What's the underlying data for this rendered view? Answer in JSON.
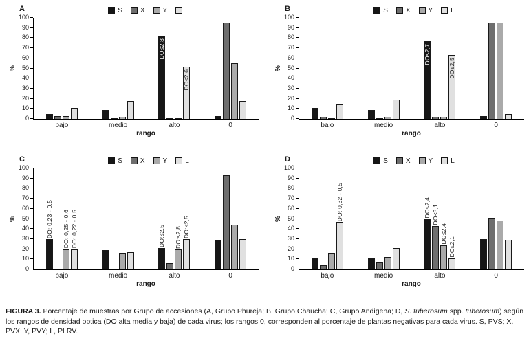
{
  "figure": {
    "caption": {
      "segments": [
        {
          "text": "FIGURA 3.",
          "bold": true
        },
        {
          "text": " Porcentaje de muestras por Grupo de accesiones (A, Grupo Phureja; B, Grupo Chaucha; C, Grupo Andigena; D, "
        },
        {
          "text": "S. tuberosum",
          "italic": true
        },
        {
          "text": " spp. "
        },
        {
          "text": "tuberosum",
          "italic": true
        },
        {
          "text": ") según los rangos de densidad optica (DO alta media y baja) de cada virus; los rangos 0, corresponden al porcentaje de plantas negativas para cada virus. S, PVS; X, PVX; Y, PVY; L, PLRV."
        }
      ]
    },
    "series_colors": {
      "S": "#161616",
      "X": "#6e6e6e",
      "Y": "#aaaaaa",
      "L": "#e0e0e0"
    }
  },
  "chart_data": [
    {
      "panel": "A",
      "type": "bar",
      "accession_group": "Grupo Phureja",
      "categories": [
        "bajo",
        "medio",
        "alto",
        "0"
      ],
      "xlabel": "rango",
      "ylabel": "%",
      "ylim": [
        0,
        100
      ],
      "yticks": [
        0,
        10,
        20,
        30,
        40,
        50,
        60,
        70,
        80,
        90,
        100
      ],
      "legend_position": "top",
      "series": [
        {
          "name": "S",
          "color": "#161616",
          "values": [
            5,
            9,
            82,
            3
          ]
        },
        {
          "name": "X",
          "color": "#6e6e6e",
          "values": [
            3,
            1,
            1,
            95
          ]
        },
        {
          "name": "Y",
          "color": "#aaaaaa",
          "values": [
            3,
            2,
            1,
            55
          ]
        },
        {
          "name": "L",
          "color": "#e0e0e0",
          "values": [
            11,
            18,
            52,
            18
          ]
        }
      ],
      "annotations": [
        {
          "series": "S",
          "category": "alto",
          "text": "DO≤2,8",
          "placement": "inside",
          "color": "#ffffff"
        },
        {
          "series": "L",
          "category": "alto",
          "text": "DO≤2,6",
          "placement": "inside",
          "color": "#1a1a1a"
        }
      ]
    },
    {
      "panel": "B",
      "type": "bar",
      "accession_group": "Grupo Chaucha",
      "categories": [
        "bajo",
        "medio",
        "alto",
        "0"
      ],
      "xlabel": "rango",
      "ylabel": "%",
      "ylim": [
        0,
        100
      ],
      "yticks": [
        0,
        10,
        20,
        30,
        40,
        50,
        60,
        70,
        80,
        90,
        100
      ],
      "legend_position": "top",
      "series": [
        {
          "name": "S",
          "color": "#161616",
          "values": [
            11,
            9,
            77,
            3
          ]
        },
        {
          "name": "X",
          "color": "#6e6e6e",
          "values": [
            2,
            1,
            2,
            95
          ]
        },
        {
          "name": "Y",
          "color": "#aaaaaa",
          "values": [
            1,
            2,
            2,
            95
          ]
        },
        {
          "name": "L",
          "color": "#e0e0e0",
          "values": [
            14,
            19,
            63,
            5
          ]
        }
      ],
      "annotations": [
        {
          "series": "S",
          "category": "alto",
          "text": "DO≤2,7",
          "placement": "inside",
          "color": "#ffffff"
        },
        {
          "series": "L",
          "category": "alto",
          "text": "DO≤2,5",
          "placement": "inside",
          "color": "#1a1a1a"
        }
      ]
    },
    {
      "panel": "C",
      "type": "bar",
      "accession_group": "Grupo Andigena",
      "categories": [
        "bajo",
        "medio",
        "alto",
        "0"
      ],
      "xlabel": "rango",
      "ylabel": "%",
      "ylim": [
        0,
        100
      ],
      "yticks": [
        0,
        10,
        20,
        30,
        40,
        50,
        60,
        70,
        80,
        90,
        100
      ],
      "legend_position": "top",
      "series": [
        {
          "name": "S",
          "color": "#161616",
          "values": [
            30,
            19,
            21,
            29
          ]
        },
        {
          "name": "X",
          "color": "#6e6e6e",
          "values": [
            1,
            1,
            6,
            93
          ]
        },
        {
          "name": "Y",
          "color": "#aaaaaa",
          "values": [
            20,
            16,
            20,
            44
          ]
        },
        {
          "name": "L",
          "color": "#e0e0e0",
          "values": [
            20,
            17,
            30,
            30
          ]
        }
      ],
      "annotations": [
        {
          "series": "S",
          "category": "bajo",
          "text": "DO: 0,23 - 0,5",
          "placement": "above",
          "color": "#1a1a1a"
        },
        {
          "series": "Y",
          "category": "bajo",
          "text": "DO: 0,25 - 0,6",
          "placement": "above",
          "color": "#1a1a1a"
        },
        {
          "series": "L",
          "category": "bajo",
          "text": "DO: 0,22 - 0,5",
          "placement": "above",
          "color": "#1a1a1a"
        },
        {
          "series": "S",
          "category": "alto",
          "text": "DO:≤2,5",
          "placement": "above",
          "color": "#1a1a1a"
        },
        {
          "series": "Y",
          "category": "alto",
          "text": "DO:≤2,8",
          "placement": "above",
          "color": "#1a1a1a"
        },
        {
          "series": "L",
          "category": "alto",
          "text": "DO:≤2,5",
          "placement": "above",
          "color": "#1a1a1a"
        }
      ]
    },
    {
      "panel": "D",
      "type": "bar",
      "accession_group": "S. tuberosum spp. tuberosum",
      "categories": [
        "bajo",
        "medio",
        "alto",
        "0"
      ],
      "xlabel": "rango",
      "ylabel": "%",
      "ylim": [
        0,
        100
      ],
      "yticks": [
        0,
        10,
        20,
        30,
        40,
        50,
        60,
        70,
        80,
        90,
        100
      ],
      "legend_position": "top",
      "series": [
        {
          "name": "S",
          "color": "#161616",
          "values": [
            11,
            11,
            50,
            30
          ]
        },
        {
          "name": "X",
          "color": "#6e6e6e",
          "values": [
            4,
            7,
            43,
            51
          ]
        },
        {
          "name": "Y",
          "color": "#aaaaaa",
          "values": [
            16,
            12,
            24,
            48
          ]
        },
        {
          "name": "L",
          "color": "#e0e0e0",
          "values": [
            47,
            21,
            11,
            29
          ]
        }
      ],
      "annotations": [
        {
          "series": "L",
          "category": "bajo",
          "text": "DO: 0,32 - 0,5",
          "placement": "above",
          "color": "#1a1a1a"
        },
        {
          "series": "S",
          "category": "alto",
          "text": "DO≤2,4",
          "placement": "above",
          "color": "#1a1a1a"
        },
        {
          "series": "X",
          "category": "alto",
          "text": "DO≤3,1",
          "placement": "above",
          "color": "#1a1a1a"
        },
        {
          "series": "Y",
          "category": "alto",
          "text": "DO≤2,4",
          "placement": "above",
          "color": "#1a1a1a"
        },
        {
          "series": "L",
          "category": "alto",
          "text": "DO≤2,1",
          "placement": "above",
          "color": "#1a1a1a"
        }
      ]
    }
  ]
}
